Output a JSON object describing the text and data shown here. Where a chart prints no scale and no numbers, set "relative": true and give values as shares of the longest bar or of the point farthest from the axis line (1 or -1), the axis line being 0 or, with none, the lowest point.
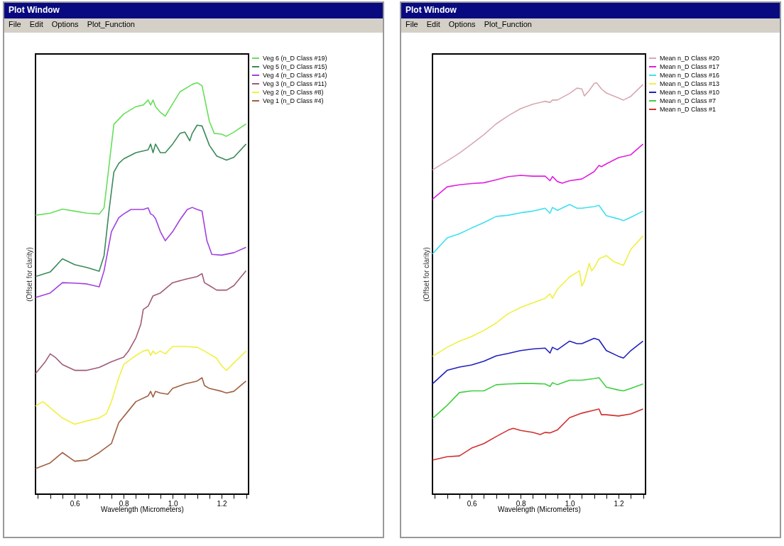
{
  "chart_data": [
    {
      "type": "line",
      "title": "Plot Window",
      "annotations": [
        "File",
        "Edit",
        "Options",
        "Plot_Function"
      ],
      "xlabel": "Wavelength (Micrometers)",
      "ylabel": "(Offset for clarity)",
      "relative": true,
      "legend": "top right",
      "xlim": [
        0.44,
        1.31
      ],
      "xticks": [
        {
          "value": 0.45,
          "label": null
        },
        {
          "value": 0.5,
          "label": null
        },
        {
          "value": 0.55,
          "label": null
        },
        0.6,
        {
          "value": 0.65,
          "label": null
        },
        {
          "value": 0.7,
          "label": null
        },
        {
          "value": 0.75,
          "label": null
        },
        0.8,
        {
          "value": 0.85,
          "label": null
        },
        {
          "value": 0.9,
          "label": null
        },
        {
          "value": 0.95,
          "label": null
        },
        {
          "value": 1,
          "label": "1.0"
        },
        {
          "value": 1.05,
          "label": null
        },
        {
          "value": 1.1,
          "label": null
        },
        {
          "value": 1.15,
          "label": null
        },
        1.2,
        {
          "value": 1.25,
          "label": null
        },
        {
          "value": 1.3,
          "label": null
        }
      ],
      "series": [
        {
          "name": "Veg 6 (n_D Class #19)",
          "color": "#66e05a",
          "x": [
            0.44,
            0.5,
            0.55,
            0.6,
            0.65,
            0.7,
            0.72,
            0.74,
            0.76,
            0.8,
            0.85,
            0.88,
            0.9,
            0.91,
            0.92,
            0.93,
            0.95,
            0.97,
            1.0,
            1.03,
            1.08,
            1.1,
            1.12,
            1.15,
            1.17,
            1.2,
            1.22,
            1.25,
            1.3
          ],
          "values": [
            0.678,
            0.683,
            0.693,
            0.688,
            0.683,
            0.681,
            0.696,
            0.797,
            0.899,
            0.924,
            0.942,
            0.946,
            0.958,
            0.946,
            0.958,
            0.942,
            0.928,
            0.919,
            0.949,
            0.978,
            0.996,
            1.0,
            0.993,
            0.906,
            0.877,
            0.875,
            0.87,
            0.88,
            0.9
          ]
        },
        {
          "name": "Veg 5 (n_D Class #15)",
          "color": "#3a8a5a",
          "x": [
            0.44,
            0.5,
            0.55,
            0.6,
            0.65,
            0.7,
            0.72,
            0.74,
            0.76,
            0.78,
            0.8,
            0.85,
            0.9,
            0.91,
            0.92,
            0.93,
            0.95,
            0.97,
            1.0,
            1.03,
            1.05,
            1.07,
            1.08,
            1.1,
            1.12,
            1.15,
            1.18,
            1.22,
            1.25,
            1.3
          ],
          "values": [
            0.529,
            0.54,
            0.572,
            0.558,
            0.551,
            0.542,
            0.58,
            0.688,
            0.783,
            0.804,
            0.815,
            0.83,
            0.837,
            0.851,
            0.83,
            0.851,
            0.83,
            0.83,
            0.851,
            0.877,
            0.88,
            0.859,
            0.877,
            0.897,
            0.895,
            0.848,
            0.822,
            0.812,
            0.819,
            0.851
          ]
        },
        {
          "name": "Veg 4 (n_D Class #14)",
          "color": "#a040e0",
          "x": [
            0.44,
            0.5,
            0.55,
            0.6,
            0.65,
            0.7,
            0.72,
            0.75,
            0.78,
            0.8,
            0.83,
            0.88,
            0.9,
            0.91,
            0.92,
            0.93,
            0.95,
            0.97,
            1.0,
            1.03,
            1.06,
            1.08,
            1.1,
            1.12,
            1.14,
            1.16,
            1.2,
            1.25,
            1.3
          ],
          "values": [
            0.478,
            0.489,
            0.514,
            0.513,
            0.511,
            0.504,
            0.543,
            0.638,
            0.672,
            0.681,
            0.692,
            0.692,
            0.696,
            0.681,
            0.678,
            0.67,
            0.638,
            0.616,
            0.638,
            0.667,
            0.692,
            0.697,
            0.692,
            0.688,
            0.616,
            0.583,
            0.581,
            0.587,
            0.6
          ]
        },
        {
          "name": "Veg 3 (n_D Class #11)",
          "color": "#a05a78",
          "x": [
            0.44,
            0.48,
            0.5,
            0.52,
            0.55,
            0.6,
            0.65,
            0.7,
            0.75,
            0.8,
            0.82,
            0.85,
            0.87,
            0.88,
            0.9,
            0.92,
            0.95,
            1.0,
            1.05,
            1.1,
            1.12,
            1.13,
            1.15,
            1.18,
            1.22,
            1.25,
            1.3
          ],
          "values": [
            0.293,
            0.322,
            0.341,
            0.333,
            0.315,
            0.301,
            0.301,
            0.308,
            0.322,
            0.333,
            0.348,
            0.38,
            0.413,
            0.449,
            0.457,
            0.482,
            0.489,
            0.514,
            0.522,
            0.529,
            0.536,
            0.514,
            0.507,
            0.496,
            0.496,
            0.507,
            0.543
          ]
        },
        {
          "name": "Veg 2 (n_D Class #8)",
          "color": "#f0f040",
          "x": [
            0.44,
            0.47,
            0.5,
            0.55,
            0.6,
            0.65,
            0.7,
            0.73,
            0.75,
            0.78,
            0.8,
            0.85,
            0.88,
            0.9,
            0.91,
            0.92,
            0.93,
            0.95,
            0.97,
            1.0,
            1.05,
            1.1,
            1.13,
            1.18,
            1.2,
            1.22,
            1.25,
            1.3
          ],
          "values": [
            0.214,
            0.225,
            0.21,
            0.185,
            0.17,
            0.178,
            0.185,
            0.196,
            0.225,
            0.283,
            0.315,
            0.337,
            0.348,
            0.351,
            0.337,
            0.348,
            0.341,
            0.348,
            0.341,
            0.359,
            0.359,
            0.357,
            0.348,
            0.33,
            0.312,
            0.301,
            0.319,
            0.348
          ]
        },
        {
          "name": "Veg 1 (n_D Class #4)",
          "color": "#a06040",
          "x": [
            0.44,
            0.5,
            0.55,
            0.6,
            0.65,
            0.7,
            0.75,
            0.78,
            0.82,
            0.85,
            0.9,
            0.91,
            0.92,
            0.93,
            0.95,
            0.98,
            1.0,
            1.05,
            1.1,
            1.12,
            1.13,
            1.15,
            1.2,
            1.22,
            1.25,
            1.3
          ],
          "values": [
            0.062,
            0.076,
            0.101,
            0.08,
            0.083,
            0.101,
            0.123,
            0.174,
            0.203,
            0.225,
            0.239,
            0.25,
            0.236,
            0.25,
            0.246,
            0.243,
            0.257,
            0.268,
            0.275,
            0.283,
            0.264,
            0.257,
            0.25,
            0.246,
            0.25,
            0.275
          ]
        }
      ]
    },
    {
      "type": "line",
      "title": "Plot Window",
      "annotations": [
        "File",
        "Edit",
        "Options",
        "Plot_Function"
      ],
      "xlabel": "Wavelength (Micrometers)",
      "ylabel": "(Offset for clarity)",
      "relative": true,
      "legend": "top right",
      "xlim": [
        0.44,
        1.31
      ],
      "xticks": [
        {
          "value": 0.45,
          "label": null
        },
        {
          "value": 0.5,
          "label": null
        },
        {
          "value": 0.55,
          "label": null
        },
        0.6,
        {
          "value": 0.65,
          "label": null
        },
        {
          "value": 0.7,
          "label": null
        },
        {
          "value": 0.75,
          "label": null
        },
        0.8,
        {
          "value": 0.85,
          "label": null
        },
        {
          "value": 0.9,
          "label": null
        },
        {
          "value": 0.95,
          "label": null
        },
        {
          "value": 1,
          "label": "1.0"
        },
        {
          "value": 1.05,
          "label": null
        },
        {
          "value": 1.1,
          "label": null
        },
        {
          "value": 1.15,
          "label": null
        },
        1.2,
        {
          "value": 1.25,
          "label": null
        },
        {
          "value": 1.3,
          "label": null
        }
      ],
      "series": [
        {
          "name": "Mean n_D Class #20",
          "color": "#d8a8b0",
          "x": [
            0.44,
            0.5,
            0.55,
            0.6,
            0.65,
            0.7,
            0.75,
            0.8,
            0.85,
            0.9,
            0.92,
            0.93,
            0.95,
            1.0,
            1.03,
            1.05,
            1.06,
            1.08,
            1.1,
            1.11,
            1.13,
            1.15,
            1.2,
            1.22,
            1.25,
            1.3
          ],
          "values": [
            0.788,
            0.81,
            0.829,
            0.851,
            0.874,
            0.9,
            0.92,
            0.937,
            0.948,
            0.955,
            0.952,
            0.958,
            0.958,
            0.974,
            0.987,
            0.985,
            0.968,
            0.981,
            0.998,
            1.0,
            0.985,
            0.975,
            0.963,
            0.958,
            0.967,
            0.996
          ]
        },
        {
          "name": "Mean n_D Class #17",
          "color": "#e020e0",
          "x": [
            0.44,
            0.5,
            0.55,
            0.6,
            0.65,
            0.7,
            0.75,
            0.8,
            0.85,
            0.9,
            0.92,
            0.93,
            0.95,
            0.97,
            1.0,
            1.05,
            1.1,
            1.12,
            1.13,
            1.15,
            1.2,
            1.25,
            1.3
          ],
          "values": [
            0.717,
            0.747,
            0.752,
            0.755,
            0.757,
            0.764,
            0.772,
            0.775,
            0.773,
            0.773,
            0.762,
            0.772,
            0.76,
            0.756,
            0.762,
            0.766,
            0.784,
            0.799,
            0.796,
            0.803,
            0.818,
            0.825,
            0.851
          ]
        },
        {
          "name": "Mean n_D Class #16",
          "color": "#40e0f0",
          "x": [
            0.44,
            0.5,
            0.55,
            0.6,
            0.65,
            0.7,
            0.75,
            0.8,
            0.85,
            0.9,
            0.92,
            0.93,
            0.95,
            1.0,
            1.03,
            1.05,
            1.1,
            1.12,
            1.15,
            1.2,
            1.22,
            1.25,
            1.3
          ],
          "values": [
            0.584,
            0.623,
            0.633,
            0.647,
            0.66,
            0.675,
            0.678,
            0.684,
            0.688,
            0.695,
            0.683,
            0.697,
            0.69,
            0.704,
            0.695,
            0.695,
            0.699,
            0.702,
            0.677,
            0.669,
            0.665,
            0.673,
            0.688
          ]
        },
        {
          "name": "Mean n_D Class #13",
          "color": "#f0f040",
          "x": [
            0.44,
            0.5,
            0.55,
            0.6,
            0.65,
            0.7,
            0.75,
            0.8,
            0.85,
            0.9,
            0.92,
            0.93,
            0.95,
            1.0,
            1.03,
            1.04,
            1.05,
            1.06,
            1.08,
            1.09,
            1.1,
            1.12,
            1.15,
            1.18,
            1.22,
            1.25,
            1.3
          ],
          "values": [
            0.335,
            0.357,
            0.372,
            0.383,
            0.398,
            0.416,
            0.439,
            0.454,
            0.465,
            0.476,
            0.487,
            0.476,
            0.498,
            0.528,
            0.539,
            0.543,
            0.506,
            0.517,
            0.561,
            0.543,
            0.55,
            0.572,
            0.58,
            0.565,
            0.556,
            0.595,
            0.628
          ]
        },
        {
          "name": "Mean n_D Class #10",
          "color": "#2020c0",
          "x": [
            0.44,
            0.5,
            0.55,
            0.6,
            0.65,
            0.7,
            0.75,
            0.8,
            0.85,
            0.9,
            0.92,
            0.93,
            0.95,
            1.0,
            1.03,
            1.05,
            1.1,
            1.12,
            1.15,
            1.2,
            1.22,
            1.25,
            1.3
          ],
          "values": [
            0.268,
            0.301,
            0.309,
            0.314,
            0.323,
            0.336,
            0.342,
            0.349,
            0.353,
            0.355,
            0.343,
            0.357,
            0.351,
            0.372,
            0.366,
            0.366,
            0.379,
            0.375,
            0.349,
            0.335,
            0.331,
            0.349,
            0.372
          ]
        },
        {
          "name": "Mean n_D Class #7",
          "color": "#40d040",
          "x": [
            0.44,
            0.5,
            0.55,
            0.6,
            0.65,
            0.7,
            0.75,
            0.8,
            0.85,
            0.9,
            0.92,
            0.93,
            0.95,
            1.0,
            1.05,
            1.1,
            1.12,
            1.15,
            1.2,
            1.22,
            1.25,
            1.3
          ],
          "values": [
            0.184,
            0.216,
            0.247,
            0.251,
            0.251,
            0.266,
            0.268,
            0.269,
            0.269,
            0.268,
            0.262,
            0.271,
            0.266,
            0.277,
            0.277,
            0.281,
            0.283,
            0.26,
            0.253,
            0.251,
            0.257,
            0.268
          ]
        },
        {
          "name": "Mean n_D Class #1",
          "color": "#d03030",
          "x": [
            0.44,
            0.5,
            0.55,
            0.6,
            0.65,
            0.7,
            0.75,
            0.77,
            0.8,
            0.85,
            0.88,
            0.9,
            0.92,
            0.95,
            1.0,
            1.05,
            1.1,
            1.12,
            1.13,
            1.15,
            1.2,
            1.25,
            1.3
          ],
          "values": [
            0.083,
            0.091,
            0.093,
            0.112,
            0.123,
            0.14,
            0.156,
            0.16,
            0.155,
            0.15,
            0.145,
            0.15,
            0.149,
            0.156,
            0.186,
            0.197,
            0.204,
            0.207,
            0.193,
            0.193,
            0.19,
            0.195,
            0.207
          ]
        }
      ]
    }
  ]
}
